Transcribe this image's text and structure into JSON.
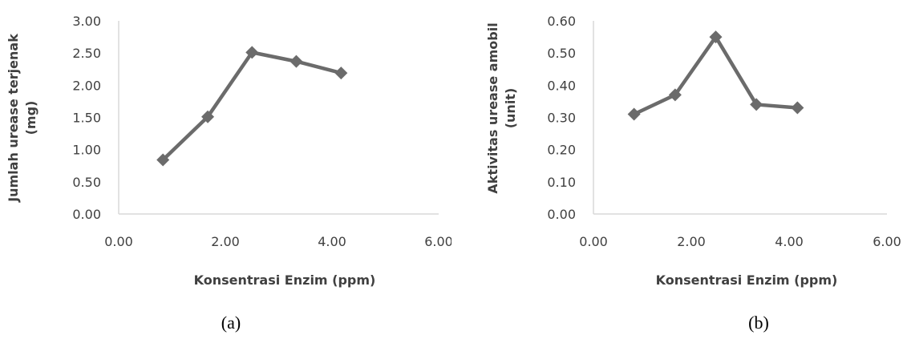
{
  "colors": {
    "series": "#6b6b6b",
    "axis": "#d9d9d9",
    "text": "#404040"
  },
  "chart_data": [
    {
      "type": "line",
      "caption": "(a)",
      "xlabel": "Konsentrasi Enzim (ppm)",
      "ylabel_lines": [
        "Jumlah urease terjenak",
        "(mg)"
      ],
      "xlim": [
        0,
        6
      ],
      "ylim": [
        0,
        3
      ],
      "xticks": [
        "0.00",
        "2.00",
        "4.00",
        "6.00"
      ],
      "xtick_values": [
        0,
        2,
        4,
        6
      ],
      "yticks": [
        "0.00",
        "0.50",
        "1.00",
        "1.50",
        "2.00",
        "2.50",
        "3.00"
      ],
      "ytick_values": [
        0,
        0.5,
        1,
        1.5,
        2,
        2.5,
        3
      ],
      "grid": false,
      "marker": "diamond",
      "x": [
        0.83,
        1.67,
        2.5,
        3.33,
        4.17
      ],
      "y": [
        0.84,
        1.51,
        2.51,
        2.37,
        2.19
      ]
    },
    {
      "type": "line",
      "caption": "(b)",
      "xlabel": "Konsentrasi Enzim (ppm)",
      "ylabel_lines": [
        "Aktivitas urease amobil",
        "(unit)"
      ],
      "xlim": [
        0,
        6
      ],
      "ylim": [
        0,
        0.6
      ],
      "xticks": [
        "0.00",
        "2.00",
        "4.00",
        "6.00"
      ],
      "xtick_values": [
        0,
        2,
        4,
        6
      ],
      "yticks": [
        "0.00",
        "0.10",
        "0.20",
        "0.30",
        "0.40",
        "0.50",
        "0.60"
      ],
      "ytick_values": [
        0,
        0.1,
        0.2,
        0.3,
        0.4,
        0.5,
        0.6
      ],
      "grid": false,
      "marker": "diamond",
      "x": [
        0.83,
        1.67,
        2.5,
        3.33,
        4.17
      ],
      "y": [
        0.31,
        0.37,
        0.55,
        0.34,
        0.33
      ]
    }
  ]
}
